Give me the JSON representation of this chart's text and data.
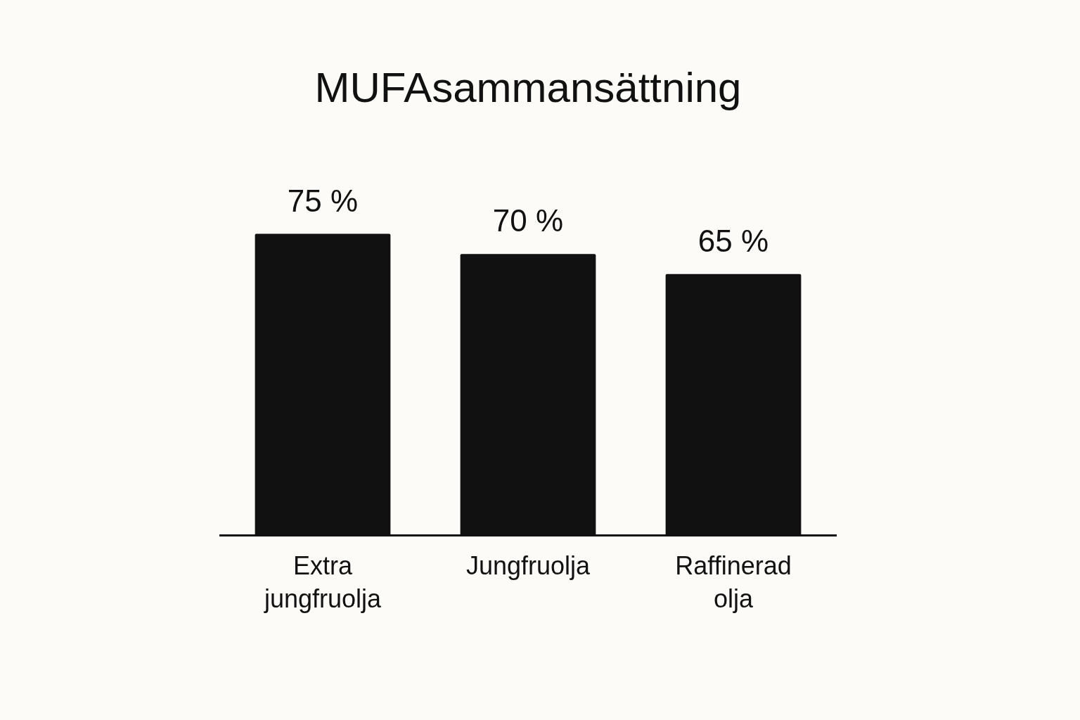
{
  "chart_data": {
    "type": "bar",
    "title": "MUFAsammansättning",
    "categories": [
      "Extra jungfruolja",
      "Jungfruolja",
      "Raffinerad olja"
    ],
    "values": [
      75,
      70,
      65
    ],
    "value_labels": [
      "75 %",
      "70 %",
      "65 %"
    ],
    "color": "#111111",
    "grid": false,
    "legend": false
  }
}
